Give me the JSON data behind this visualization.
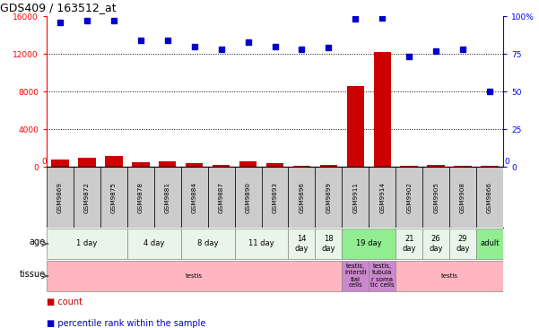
{
  "title": "GDS409 / 163512_at",
  "samples": [
    "GSM9869",
    "GSM9872",
    "GSM9875",
    "GSM9878",
    "GSM9881",
    "GSM9884",
    "GSM9887",
    "GSM9890",
    "GSM9893",
    "GSM9896",
    "GSM9899",
    "GSM9911",
    "GSM9914",
    "GSM9902",
    "GSM9905",
    "GSM9908",
    "GSM9866"
  ],
  "counts": [
    800,
    1000,
    1150,
    480,
    580,
    340,
    180,
    530,
    380,
    140,
    190,
    8600,
    12200,
    90,
    180,
    140,
    140
  ],
  "percentiles": [
    96,
    97,
    97,
    84,
    84,
    80,
    78,
    83,
    80,
    78,
    79,
    98,
    99,
    73,
    77,
    78,
    50
  ],
  "ylim_left": [
    0,
    16000
  ],
  "ylim_right": [
    0,
    100
  ],
  "yticks_left": [
    0,
    4000,
    8000,
    12000,
    16000
  ],
  "yticks_right": [
    0,
    25,
    50,
    75,
    100
  ],
  "bar_color": "#cc0000",
  "dot_color": "#0000cc",
  "age_groups": [
    {
      "label": "1 day",
      "start": 0,
      "end": 2,
      "color": "#e8f5e8"
    },
    {
      "label": "4 day",
      "start": 3,
      "end": 4,
      "color": "#e8f5e8"
    },
    {
      "label": "8 day",
      "start": 5,
      "end": 6,
      "color": "#e8f5e8"
    },
    {
      "label": "11 day",
      "start": 7,
      "end": 8,
      "color": "#e8f5e8"
    },
    {
      "label": "14\nday",
      "start": 9,
      "end": 9,
      "color": "#e8f5e8"
    },
    {
      "label": "18\nday",
      "start": 10,
      "end": 10,
      "color": "#e8f5e8"
    },
    {
      "label": "19 day",
      "start": 11,
      "end": 12,
      "color": "#90ee90"
    },
    {
      "label": "21\nday",
      "start": 13,
      "end": 13,
      "color": "#e8f5e8"
    },
    {
      "label": "26\nday",
      "start": 14,
      "end": 14,
      "color": "#e8f5e8"
    },
    {
      "label": "29\nday",
      "start": 15,
      "end": 15,
      "color": "#e8f5e8"
    },
    {
      "label": "adult",
      "start": 16,
      "end": 16,
      "color": "#90ee90"
    }
  ],
  "tissue_groups": [
    {
      "label": "testis",
      "start": 0,
      "end": 10,
      "color": "#ffb6c1"
    },
    {
      "label": "testis,\nintersti\ntial\ncells",
      "start": 11,
      "end": 11,
      "color": "#cc88cc"
    },
    {
      "label": "testis,\ntubula\nr soma\ntic cells",
      "start": 12,
      "end": 12,
      "color": "#cc88cc"
    },
    {
      "label": "testis",
      "start": 13,
      "end": 16,
      "color": "#ffb6c1"
    }
  ],
  "background_color": "#ffffff",
  "sample_box_color": "#cccccc"
}
